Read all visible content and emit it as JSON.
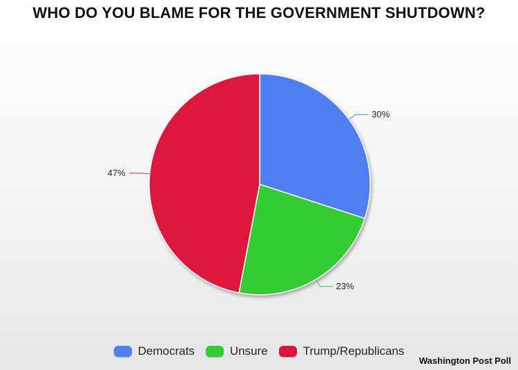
{
  "chart_data": {
    "type": "pie",
    "title": "WHO DO YOU BLAME FOR THE GOVERNMENT SHUTDOWN?",
    "categories": [
      "Democrats",
      "Unsure",
      "Trump/Republicans"
    ],
    "values": [
      30,
      23,
      47
    ],
    "value_labels": [
      "30%",
      "23%",
      "47%"
    ],
    "colors": [
      "#4f7ef0",
      "#33cc33",
      "#dc143c"
    ],
    "legend_placement": "bottom"
  },
  "source": "Washington Post Poll"
}
